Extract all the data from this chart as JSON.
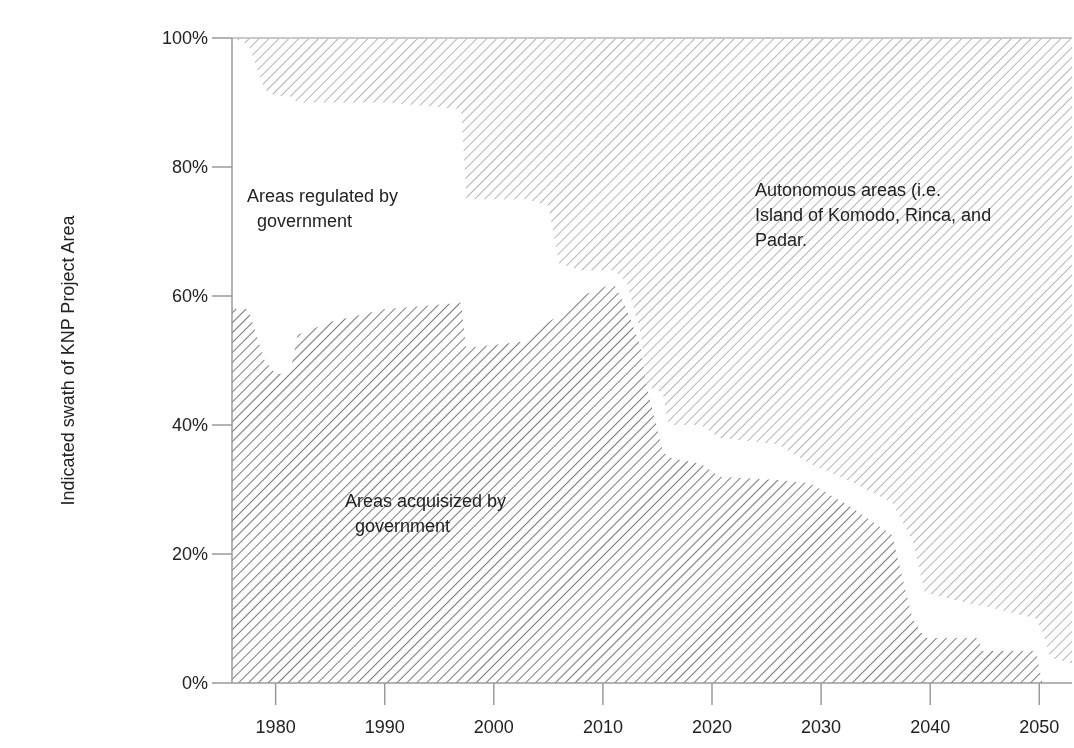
{
  "chart_data": {
    "type": "area",
    "stacked": true,
    "ylabel": "Indicated swath of KNP Project Area",
    "x": [
      1976,
      1977.5,
      1979,
      1980,
      1981.3,
      1982,
      1985,
      1990,
      1997,
      1997.5,
      2003,
      2005,
      2006,
      2008,
      2011,
      2012.2,
      2013.5,
      2014,
      2015.5,
      2016,
      2019,
      2020.7,
      2026,
      2029,
      2033,
      2036.5,
      2038.4,
      2039.5,
      2044.4,
      2044.8,
      2049.7,
      2050.3,
      2051,
      2053
    ],
    "series": [
      {
        "name": "Areas acquisized by government",
        "color": "#7a7a7a",
        "values": [
          58,
          58,
          50,
          48,
          48,
          54,
          56,
          58,
          59,
          52,
          53,
          56,
          57,
          60,
          62,
          58,
          52,
          46,
          36,
          35,
          34,
          32,
          31.5,
          31,
          27,
          23,
          10,
          7,
          7,
          5,
          5,
          0,
          0,
          0
        ]
      },
      {
        "name": "Areas regulated by government",
        "color": "#ffffff",
        "values": [
          42,
          41,
          42,
          43,
          43,
          36,
          34,
          32,
          30,
          23,
          22,
          18,
          8,
          4,
          2,
          4,
          2,
          0,
          9,
          5,
          6,
          6,
          5.5,
          3,
          4,
          5,
          12,
          7,
          5,
          7,
          5,
          8,
          4,
          3
        ]
      },
      {
        "name": "Autonomous areas (i.e. Island of Komodo, Rinca, and Padar.",
        "color": "#b4b4b4",
        "values": [
          0,
          1,
          8,
          9,
          9,
          10,
          10,
          10,
          11,
          25,
          25,
          26,
          35,
          36,
          36,
          38,
          46,
          54,
          55,
          60,
          60,
          62,
          63,
          66,
          69,
          72,
          78,
          86,
          88,
          88,
          90,
          92,
          96,
          97
        ]
      }
    ],
    "xlim": [
      1976,
      2053
    ],
    "xticks": [
      1980,
      1990,
      2000,
      2010,
      2020,
      2030,
      2040,
      2050
    ],
    "ylim": [
      0,
      100
    ],
    "yticks": [
      {
        "value": 0,
        "label": "0%"
      },
      {
        "value": 20,
        "label": "20%"
      },
      {
        "value": 40,
        "label": "40%"
      },
      {
        "value": 60,
        "label": "60%"
      },
      {
        "value": 80,
        "label": "80%"
      },
      {
        "value": 100,
        "label": "100%"
      }
    ],
    "legend": false
  }
}
